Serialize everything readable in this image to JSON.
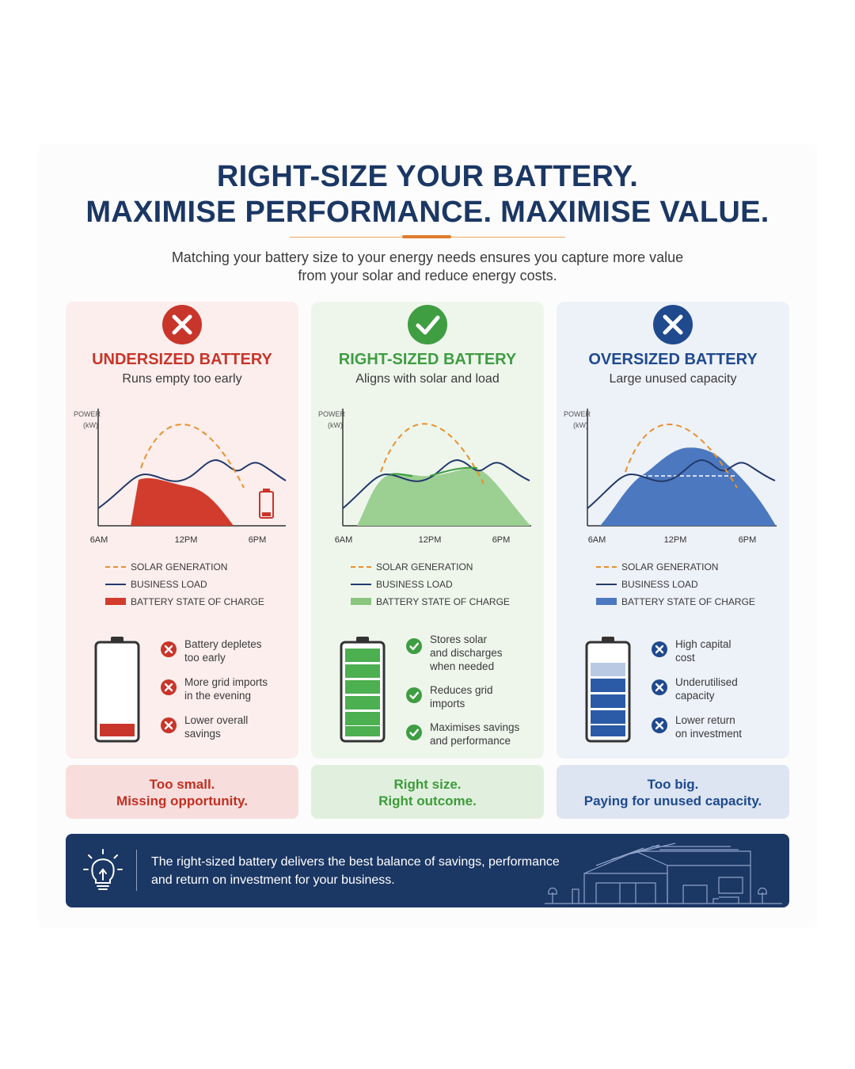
{
  "header": {
    "title_line1": "RIGHT-SIZE YOUR BATTERY.",
    "title_line2": "MAXIMISE PERFORMANCE. MAXIMISE VALUE.",
    "subtitle_line1": "Matching your battery size to your energy needs ensures you capture more value",
    "subtitle_line2": "from your solar and reduce energy costs."
  },
  "colors": {
    "navy": "#1b3764",
    "orange": "#e8912f",
    "red": "#c8352a",
    "green": "#4caf50",
    "blue": "#2b5aa6"
  },
  "chart_labels": {
    "y_axis": "POWER (kW)",
    "x_ticks": [
      "6AM",
      "12PM",
      "6PM"
    ]
  },
  "legend": {
    "solar": "SOLAR GENERATION",
    "load": "BUSINESS LOAD",
    "battery": "BATTERY STATE OF CHARGE"
  },
  "panels": [
    {
      "title": "UNDERSIZED BATTERY",
      "subtitle": "Runs empty too early",
      "badge_icon": "x-icon",
      "battery_charge": 0.15,
      "bullets": [
        {
          "icon": "x-icon",
          "text": "Battery depletes\ntoo early"
        },
        {
          "icon": "x-icon",
          "text": "More grid imports\nin the evening"
        },
        {
          "icon": "x-icon",
          "text": "Lower overall\nsavings"
        }
      ],
      "footer_line1": "Too small.",
      "footer_line2": "Missing opportunity."
    },
    {
      "title": "RIGHT-SIZED BATTERY",
      "subtitle": "Aligns with solar and load",
      "badge_icon": "check-icon",
      "battery_charge": 1.0,
      "bullets": [
        {
          "icon": "check-icon",
          "text": "Stores solar\nand discharges\nwhen needed"
        },
        {
          "icon": "check-icon",
          "text": "Reduces grid\nimports"
        },
        {
          "icon": "check-icon",
          "text": "Maximises savings\nand performance"
        }
      ],
      "footer_line1": "Right size.",
      "footer_line2": "Right outcome."
    },
    {
      "title": "OVERSIZED BATTERY",
      "subtitle": "Large unused capacity",
      "badge_icon": "x-icon",
      "battery_charge": 0.8,
      "bullets": [
        {
          "icon": "x-icon",
          "text": "High capital\ncost"
        },
        {
          "icon": "x-icon",
          "text": "Underutilised\ncapacity"
        },
        {
          "icon": "x-icon",
          "text": "Lower return\non investment"
        }
      ],
      "footer_line1": "Too big.",
      "footer_line2": "Paying for unused capacity."
    }
  ],
  "banner": {
    "line1": "The right-sized battery delivers the best balance of savings, performance",
    "line2": "and return on investment for your business."
  }
}
